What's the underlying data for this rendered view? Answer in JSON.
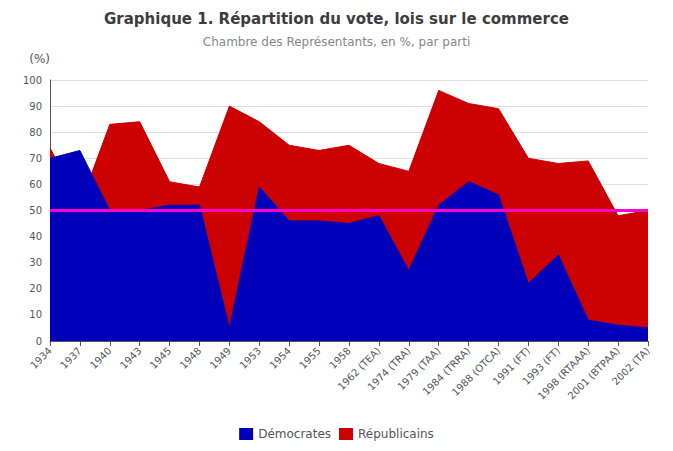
{
  "chart_data": {
    "type": "area",
    "title": "Graphique 1. Répartition du vote, lois sur le commerce",
    "subtitle": "Chambre des Représentants, en %, par parti",
    "y_label": "(%)",
    "categories": [
      "1934",
      "1937",
      "1940",
      "1943",
      "1945",
      "1948",
      "1949",
      "1953",
      "1954",
      "1955",
      "1958",
      "1962 (TEA)",
      "1974 (TRA)",
      "1979 (TAA)",
      "1984 (TRRA)",
      "1988 (OTCA)",
      "1991 (FT)",
      "1993 (FT)",
      "1998 (RTAAA)",
      "2001 (BTPAA)",
      "2002 (TA)"
    ],
    "series": [
      {
        "name": "Démocrates",
        "color": "#0000bb",
        "values": [
          70,
          73,
          50,
          50,
          52,
          52,
          5,
          59,
          46,
          46,
          45,
          48,
          27,
          52,
          61,
          56,
          22,
          33,
          8,
          6,
          5
        ]
      },
      {
        "name": "Républicains",
        "color": "#cc0000",
        "values": [
          74,
          52,
          83,
          84,
          61,
          59,
          90,
          84,
          75,
          73,
          75,
          68,
          65,
          96,
          91,
          89,
          70,
          68,
          69,
          48,
          50
        ]
      }
    ],
    "reference_lines": [
      {
        "y": 50,
        "color": "#ff00cc"
      }
    ],
    "ylim": [
      0,
      100
    ],
    "yticks": [
      0,
      10,
      20,
      30,
      40,
      50,
      60,
      70,
      80,
      90,
      100
    ],
    "grid": true,
    "legend": "bottom"
  }
}
